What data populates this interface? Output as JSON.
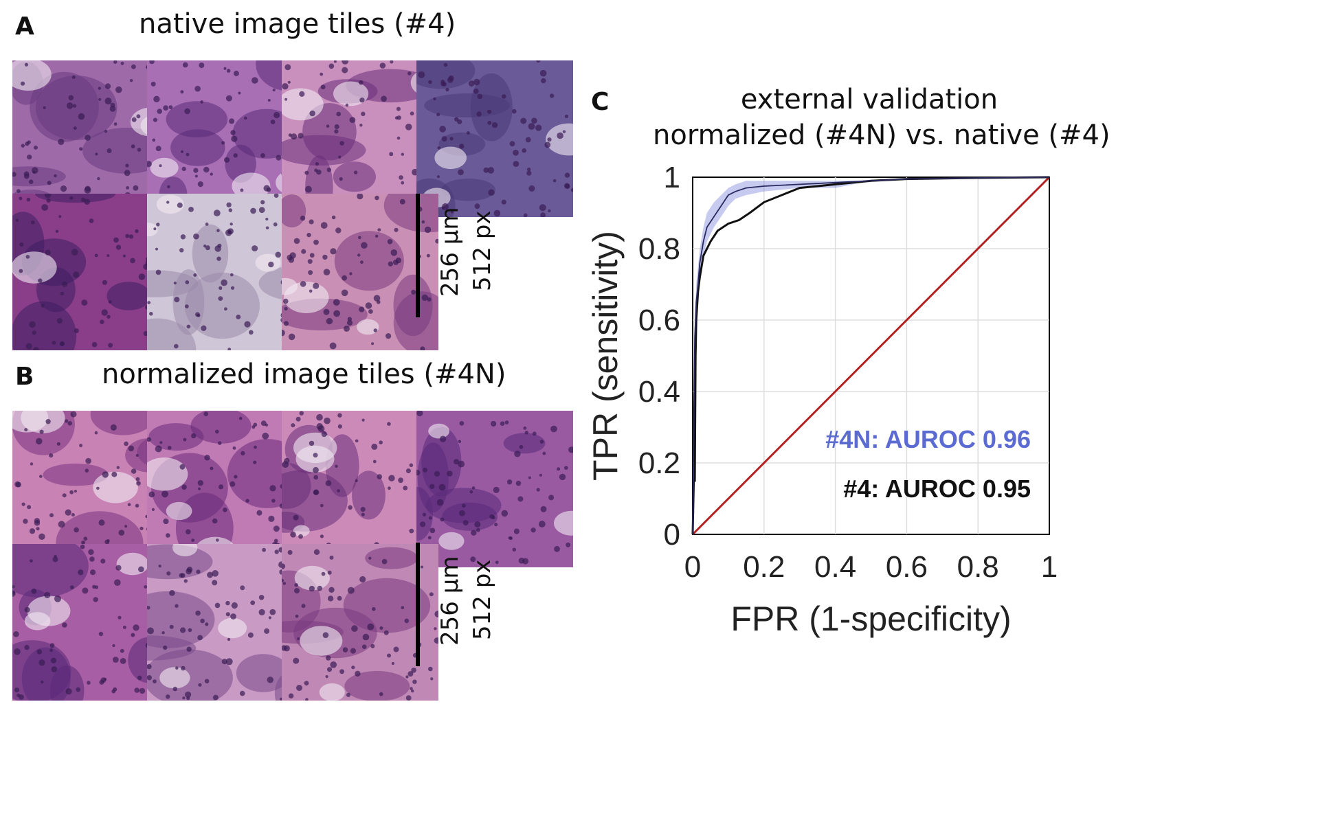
{
  "panels": {
    "A": {
      "letter": "A",
      "title": "native image tiles (#4)"
    },
    "B": {
      "letter": "B",
      "title": "normalized image tiles (#4N)"
    },
    "C": {
      "letter": "C",
      "title_line1": "external validation",
      "title_line2": "normalized (#4N) vs. native (#4)"
    }
  },
  "scalebar": {
    "line1": "256 µm",
    "line2": "512 px"
  },
  "tiles_native": [
    {
      "tone": "#9e6aa8",
      "feature": "#6a3a80"
    },
    {
      "tone": "#a86fb4",
      "feature": "#5a2a78"
    },
    {
      "tone": "#c98fbd",
      "feature": "#6a2f7a"
    },
    {
      "tone": "#6a5a98",
      "feature": "#4a3a78"
    },
    {
      "tone": "#8a3e8a",
      "feature": "#3e1d62"
    },
    {
      "tone": "#cfc6d8",
      "feature": "#9a8aaa"
    },
    {
      "tone": "#c98fb4",
      "feature": "#7a3a80"
    }
  ],
  "tiles_normalized": [
    {
      "tone": "#c882b4",
      "feature": "#7a3582"
    },
    {
      "tone": "#c07ab4",
      "feature": "#6a2a7a"
    },
    {
      "tone": "#cc8ab8",
      "feature": "#6a2f7a"
    },
    {
      "tone": "#9a5aa2",
      "feature": "#5a2a7a"
    },
    {
      "tone": "#a85ea4",
      "feature": "#5a2a78"
    },
    {
      "tone": "#c89ac4",
      "feature": "#7a4a8a"
    },
    {
      "tone": "#c088b4",
      "feature": "#7a3a80"
    }
  ],
  "chart_data": {
    "type": "line",
    "title": "external validation normalized (#4N) vs. native (#4)",
    "xlabel": "FPR (1-specificity)",
    "ylabel": "TPR (sensitivity)",
    "xlim": [
      0,
      1
    ],
    "ylim": [
      0,
      1
    ],
    "xticks": [
      "0",
      "0.2",
      "0.4",
      "0.6",
      "0.8",
      "1"
    ],
    "yticks": [
      "0",
      "0.2",
      "0.4",
      "0.6",
      "0.8",
      "1"
    ],
    "grid": true,
    "series": [
      {
        "name": "#4N",
        "color": "#5b6bd1",
        "auroc_label": "#4N: AUROC 0.96",
        "x": [
          0,
          0.003,
          0.006,
          0.01,
          0.015,
          0.02,
          0.03,
          0.04,
          0.06,
          0.08,
          0.1,
          0.12,
          0.15,
          0.2,
          0.3,
          0.4,
          0.5,
          0.6,
          0.8,
          1
        ],
        "y": [
          0,
          0.3,
          0.55,
          0.65,
          0.7,
          0.76,
          0.82,
          0.86,
          0.89,
          0.92,
          0.95,
          0.96,
          0.97,
          0.975,
          0.98,
          0.985,
          0.99,
          0.995,
          0.998,
          1
        ],
        "band_lower": [
          0,
          0.25,
          0.5,
          0.6,
          0.66,
          0.72,
          0.78,
          0.82,
          0.86,
          0.89,
          0.92,
          0.94,
          0.95,
          0.96,
          0.97,
          0.97,
          0.99,
          0.995,
          0.998,
          1
        ],
        "band_upper": [
          0,
          0.35,
          0.6,
          0.7,
          0.75,
          0.8,
          0.86,
          0.9,
          0.93,
          0.95,
          0.97,
          0.98,
          0.99,
          0.99,
          0.99,
          0.99,
          0.99,
          0.995,
          0.998,
          1
        ]
      },
      {
        "name": "#4",
        "color": "#111111",
        "auroc_label": "#4: AUROC 0.95",
        "x": [
          0,
          0.003,
          0.006,
          0.008,
          0.01,
          0.015,
          0.02,
          0.03,
          0.05,
          0.07,
          0.1,
          0.13,
          0.16,
          0.2,
          0.25,
          0.3,
          0.4,
          0.5,
          0.6,
          0.8,
          1
        ],
        "y": [
          0,
          0.15,
          0.15,
          0.5,
          0.6,
          0.68,
          0.72,
          0.78,
          0.82,
          0.85,
          0.87,
          0.88,
          0.9,
          0.93,
          0.95,
          0.97,
          0.98,
          0.99,
          0.995,
          0.998,
          1
        ]
      },
      {
        "name": "",
        "color": "#b22222",
        "x": [
          0,
          1
        ],
        "y": [
          0,
          1
        ]
      }
    ]
  }
}
